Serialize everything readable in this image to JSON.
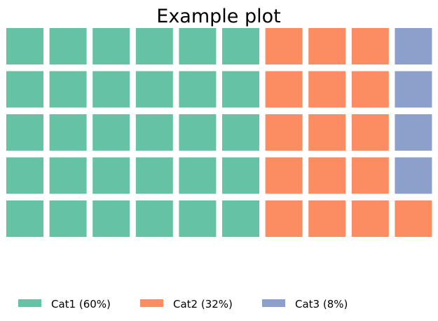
{
  "chart_data": {
    "type": "waffle",
    "title": "Example plot",
    "rows": 5,
    "columns": 10,
    "fill_order": "column-major, bottom-to-top, left-to-right",
    "series": [
      {
        "name": "Cat1",
        "value": 60,
        "color": "#66c2a5",
        "legend_label": "Cat1 (60%)"
      },
      {
        "name": "Cat2",
        "value": 32,
        "color": "#fc8d62",
        "legend_label": "Cat2 (32%)"
      },
      {
        "name": "Cat3",
        "value": 8,
        "color": "#8da0cb",
        "legend_label": "Cat3 (8%)"
      }
    ],
    "legend_position": "bottom"
  }
}
